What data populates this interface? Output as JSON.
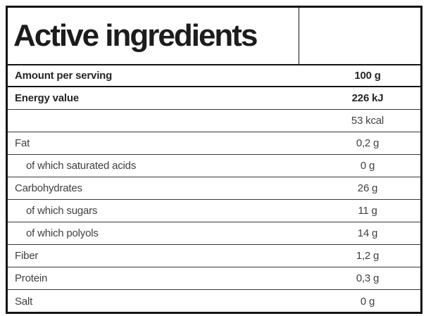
{
  "header": {
    "title": "Active ingredients"
  },
  "colors": {
    "border": "#141414",
    "divider": "#383838",
    "text_bold": "#262626",
    "text_regular": "#404040",
    "background": "#ffffff"
  },
  "table": {
    "rows": [
      {
        "label": "Amount per serving",
        "value": "100 g",
        "bold": true,
        "indent": false
      },
      {
        "label": "Energy value",
        "value": "226 kJ",
        "bold": true,
        "indent": false
      },
      {
        "label": "",
        "value": "53 kcal",
        "bold": false,
        "indent": false
      },
      {
        "label": "Fat",
        "value": "0,2 g",
        "bold": false,
        "indent": false
      },
      {
        "label": "of which saturated acids",
        "value": "0 g",
        "bold": false,
        "indent": true
      },
      {
        "label": "Carbohydrates",
        "value": "26 g",
        "bold": false,
        "indent": false
      },
      {
        "label": "of which sugars",
        "value": "11 g",
        "bold": false,
        "indent": true
      },
      {
        "label": "of which polyols",
        "value": "14 g",
        "bold": false,
        "indent": true
      },
      {
        "label": "Fiber",
        "value": "1,2 g",
        "bold": false,
        "indent": false
      },
      {
        "label": "Protein",
        "value": "0,3 g",
        "bold": false,
        "indent": false
      },
      {
        "label": "Salt",
        "value": "0 g",
        "bold": false,
        "indent": false
      }
    ]
  }
}
